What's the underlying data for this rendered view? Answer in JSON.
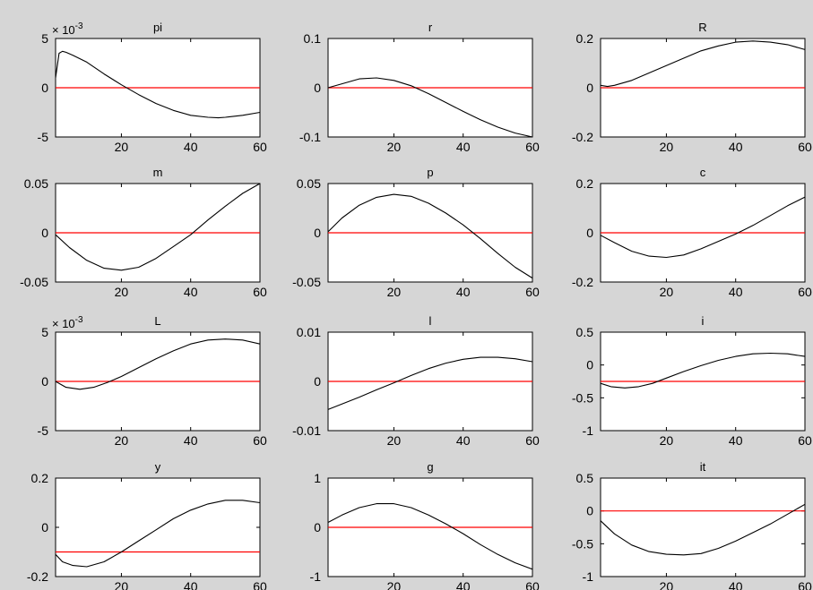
{
  "figure": {
    "background": "#d6d6d6",
    "axes_background": "#ffffff",
    "line_color": "#000000",
    "zero_line_color": "#ff0000"
  },
  "chart_data": [
    {
      "type": "line",
      "title": "pi",
      "exponent_label": "× 10",
      "exponent": "-3",
      "xlim": [
        1,
        60
      ],
      "ylim": [
        -5,
        5
      ],
      "xticks": [
        20,
        40,
        60
      ],
      "yticks": [
        -5,
        0,
        5
      ],
      "xtick_labels": [
        "20",
        "40",
        "60"
      ],
      "ytick_labels": [
        "-5",
        "0",
        "5"
      ],
      "reference_line": 0,
      "series": [
        {
          "x": [
            1,
            2,
            3,
            4,
            6,
            10,
            15,
            20,
            25,
            30,
            35,
            40,
            45,
            48,
            50,
            55,
            60
          ],
          "y": [
            1,
            3.5,
            3.7,
            3.6,
            3.3,
            2.6,
            1.4,
            0.3,
            -0.7,
            -1.6,
            -2.3,
            -2.8,
            -3,
            -3.05,
            -3,
            -2.8,
            -2.5
          ]
        }
      ]
    },
    {
      "type": "line",
      "title": "r",
      "xlim": [
        1,
        60
      ],
      "ylim": [
        -0.1,
        0.1
      ],
      "xticks": [
        20,
        40,
        60
      ],
      "yticks": [
        -0.1,
        0,
        0.1
      ],
      "xtick_labels": [
        "20",
        "40",
        "60"
      ],
      "ytick_labels": [
        "-0.1",
        "0",
        "0.1"
      ],
      "reference_line": 0,
      "series": [
        {
          "x": [
            1,
            5,
            10,
            15,
            20,
            25,
            30,
            35,
            40,
            45,
            50,
            55,
            60
          ],
          "y": [
            0,
            0.008,
            0.018,
            0.02,
            0.015,
            0.004,
            -0.012,
            -0.03,
            -0.048,
            -0.065,
            -0.08,
            -0.092,
            -0.1
          ]
        }
      ]
    },
    {
      "type": "line",
      "title": "R",
      "xlim": [
        1,
        60
      ],
      "ylim": [
        -0.2,
        0.2
      ],
      "xticks": [
        20,
        40,
        60
      ],
      "yticks": [
        -0.2,
        0,
        0.2
      ],
      "xtick_labels": [
        "20",
        "40",
        "60"
      ],
      "ytick_labels": [
        "-0.2",
        "0",
        "0.2"
      ],
      "reference_line": 0,
      "series": [
        {
          "x": [
            1,
            3,
            5,
            10,
            15,
            20,
            25,
            30,
            35,
            40,
            45,
            50,
            55,
            60
          ],
          "y": [
            0.01,
            0.005,
            0.01,
            0.03,
            0.06,
            0.09,
            0.12,
            0.15,
            0.17,
            0.185,
            0.19,
            0.185,
            0.175,
            0.155
          ]
        }
      ]
    },
    {
      "type": "line",
      "title": "m",
      "xlim": [
        1,
        60
      ],
      "ylim": [
        -0.05,
        0.05
      ],
      "xticks": [
        20,
        40,
        60
      ],
      "yticks": [
        -0.05,
        0,
        0.05
      ],
      "xtick_labels": [
        "20",
        "40",
        "60"
      ],
      "ytick_labels": [
        "-0.05",
        "0",
        "0.05"
      ],
      "reference_line": 0,
      "series": [
        {
          "x": [
            1,
            5,
            10,
            15,
            20,
            25,
            30,
            35,
            40,
            45,
            50,
            55,
            60
          ],
          "y": [
            -0.002,
            -0.015,
            -0.028,
            -0.036,
            -0.038,
            -0.035,
            -0.026,
            -0.014,
            -0.002,
            0.013,
            0.027,
            0.04,
            0.05
          ]
        }
      ]
    },
    {
      "type": "line",
      "title": "p",
      "xlim": [
        1,
        60
      ],
      "ylim": [
        -0.05,
        0.05
      ],
      "xticks": [
        20,
        40,
        60
      ],
      "yticks": [
        -0.05,
        0,
        0.05
      ],
      "xtick_labels": [
        "20",
        "40",
        "60"
      ],
      "ytick_labels": [
        "-0.05",
        "0",
        "0.05"
      ],
      "reference_line": 0,
      "series": [
        {
          "x": [
            1,
            5,
            10,
            15,
            20,
            25,
            30,
            35,
            40,
            45,
            50,
            55,
            60
          ],
          "y": [
            0.001,
            0.015,
            0.028,
            0.036,
            0.039,
            0.037,
            0.03,
            0.02,
            0.008,
            -0.006,
            -0.021,
            -0.035,
            -0.046
          ]
        }
      ]
    },
    {
      "type": "line",
      "title": "c",
      "xlim": [
        1,
        60
      ],
      "ylim": [
        -0.2,
        0.2
      ],
      "xticks": [
        20,
        40,
        60
      ],
      "yticks": [
        -0.2,
        0,
        0.2
      ],
      "xtick_labels": [
        "20",
        "40",
        "60"
      ],
      "ytick_labels": [
        "-0.2",
        "0",
        "0.2"
      ],
      "reference_line": 0,
      "series": [
        {
          "x": [
            1,
            5,
            10,
            15,
            20,
            25,
            30,
            35,
            40,
            45,
            50,
            55,
            60
          ],
          "y": [
            -0.01,
            -0.04,
            -0.075,
            -0.095,
            -0.1,
            -0.09,
            -0.065,
            -0.035,
            -0.005,
            0.03,
            0.07,
            0.11,
            0.145
          ]
        }
      ]
    },
    {
      "type": "line",
      "title": "L",
      "exponent_label": "× 10",
      "exponent": "-3",
      "xlim": [
        1,
        60
      ],
      "ylim": [
        -5,
        5
      ],
      "xticks": [
        20,
        40,
        60
      ],
      "yticks": [
        -5,
        0,
        5
      ],
      "xtick_labels": [
        "20",
        "40",
        "60"
      ],
      "ytick_labels": [
        "-5",
        "0",
        "5"
      ],
      "reference_line": 0,
      "series": [
        {
          "x": [
            1,
            4,
            8,
            12,
            16,
            20,
            25,
            30,
            35,
            40,
            45,
            50,
            55,
            60
          ],
          "y": [
            0,
            -0.6,
            -0.8,
            -0.6,
            -0.1,
            0.5,
            1.4,
            2.3,
            3.1,
            3.8,
            4.2,
            4.3,
            4.2,
            3.8
          ]
        }
      ]
    },
    {
      "type": "line",
      "title": "l",
      "xlim": [
        1,
        60
      ],
      "ylim": [
        -0.01,
        0.01
      ],
      "xticks": [
        20,
        40,
        60
      ],
      "yticks": [
        -0.01,
        0,
        0.01
      ],
      "xtick_labels": [
        "20",
        "40",
        "60"
      ],
      "ytick_labels": [
        "-0.01",
        "0",
        "0.01"
      ],
      "reference_line": 0,
      "series": [
        {
          "x": [
            1,
            5,
            10,
            15,
            20,
            25,
            30,
            35,
            40,
            45,
            50,
            55,
            60
          ],
          "y": [
            -0.0057,
            -0.0046,
            -0.0032,
            -0.0017,
            -0.0003,
            0.0012,
            0.0026,
            0.0037,
            0.0045,
            0.0049,
            0.0049,
            0.0046,
            0.004
          ]
        }
      ]
    },
    {
      "type": "line",
      "title": "i",
      "xlim": [
        1,
        60
      ],
      "ylim": [
        -1,
        0.5
      ],
      "xticks": [
        20,
        40,
        60
      ],
      "yticks": [
        -1,
        -0.5,
        0,
        0.5
      ],
      "xtick_labels": [
        "20",
        "40",
        "60"
      ],
      "ytick_labels": [
        "-1",
        "-0.5",
        "0",
        "0.5"
      ],
      "reference_line": -0.25,
      "series": [
        {
          "x": [
            1,
            4,
            8,
            12,
            16,
            20,
            25,
            30,
            35,
            40,
            45,
            50,
            55,
            60
          ],
          "y": [
            -0.28,
            -0.33,
            -0.35,
            -0.33,
            -0.28,
            -0.2,
            -0.1,
            -0.01,
            0.07,
            0.13,
            0.17,
            0.18,
            0.17,
            0.13
          ]
        }
      ]
    },
    {
      "type": "line",
      "title": "y",
      "xlim": [
        1,
        60
      ],
      "ylim": [
        -0.2,
        0.2
      ],
      "xticks": [
        20,
        40,
        60
      ],
      "yticks": [
        -0.2,
        0,
        0.2
      ],
      "xtick_labels": [
        "20",
        "40",
        "60"
      ],
      "ytick_labels": [
        "-0.2",
        "0",
        "0.2"
      ],
      "reference_line": -0.1,
      "series": [
        {
          "x": [
            1,
            3,
            6,
            10,
            15,
            20,
            25,
            30,
            35,
            40,
            45,
            50,
            55,
            60
          ],
          "y": [
            -0.11,
            -0.14,
            -0.155,
            -0.16,
            -0.14,
            -0.1,
            -0.055,
            -0.01,
            0.035,
            0.07,
            0.095,
            0.11,
            0.11,
            0.1
          ]
        }
      ]
    },
    {
      "type": "line",
      "title": "g",
      "xlim": [
        1,
        60
      ],
      "ylim": [
        -1,
        1
      ],
      "xticks": [
        20,
        40,
        60
      ],
      "yticks": [
        -1,
        0,
        1
      ],
      "xtick_labels": [
        "20",
        "40",
        "60"
      ],
      "ytick_labels": [
        "-1",
        "0",
        "1"
      ],
      "reference_line": 0,
      "series": [
        {
          "x": [
            1,
            5,
            10,
            15,
            20,
            25,
            30,
            35,
            40,
            45,
            50,
            55,
            60
          ],
          "y": [
            0.1,
            0.25,
            0.4,
            0.48,
            0.48,
            0.4,
            0.25,
            0.07,
            -0.13,
            -0.35,
            -0.55,
            -0.72,
            -0.85
          ]
        }
      ]
    },
    {
      "type": "line",
      "title": "it",
      "xlim": [
        1,
        60
      ],
      "ylim": [
        -1,
        0.5
      ],
      "xticks": [
        20,
        40,
        60
      ],
      "yticks": [
        -1,
        -0.5,
        0,
        0.5
      ],
      "xtick_labels": [
        "20",
        "40",
        "60"
      ],
      "ytick_labels": [
        "-1",
        "-0.5",
        "0",
        "0.5"
      ],
      "reference_line": 0,
      "series": [
        {
          "x": [
            1,
            5,
            10,
            15,
            20,
            25,
            30,
            35,
            40,
            45,
            50,
            55,
            60
          ],
          "y": [
            -0.15,
            -0.35,
            -0.52,
            -0.62,
            -0.66,
            -0.67,
            -0.65,
            -0.57,
            -0.46,
            -0.33,
            -0.2,
            -0.05,
            0.1
          ]
        }
      ]
    }
  ]
}
